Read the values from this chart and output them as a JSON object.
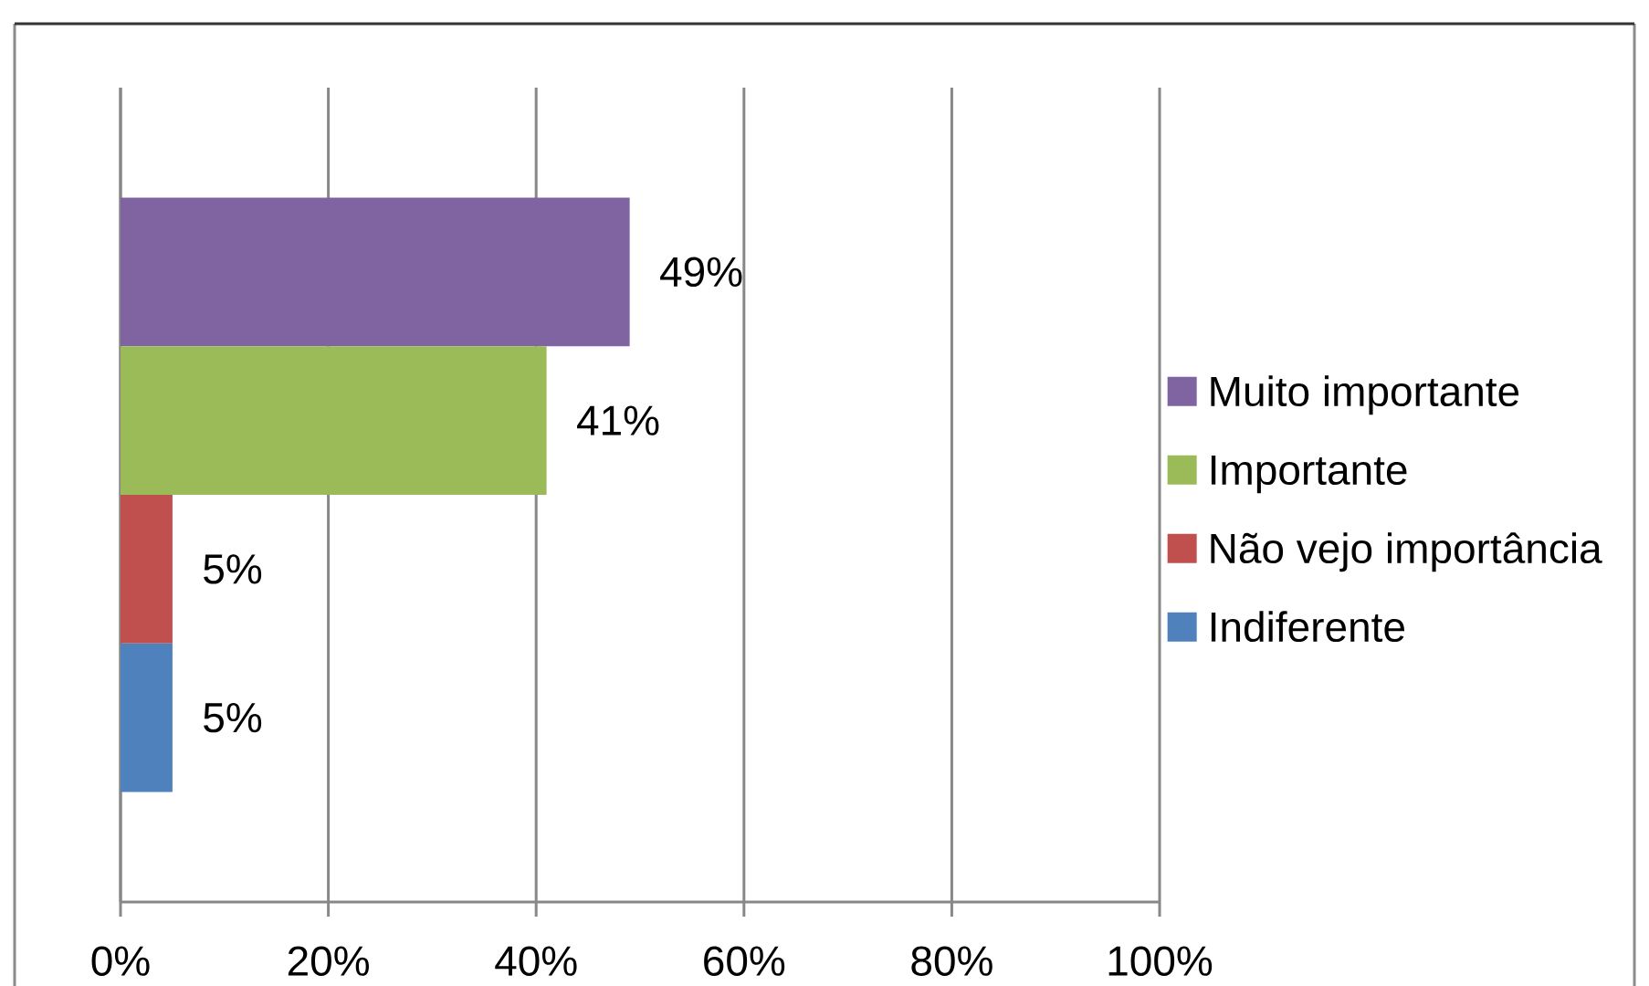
{
  "chart_data": {
    "type": "bar",
    "orientation": "horizontal",
    "categories": [
      null
    ],
    "series": [
      {
        "name": "Muito importante",
        "color": "#8064a2",
        "values": [
          49
        ],
        "value_labels": [
          "49%"
        ]
      },
      {
        "name": "Importante",
        "color": "#9bbb59",
        "values": [
          41
        ],
        "value_labels": [
          "41%"
        ]
      },
      {
        "name": "Não vejo importância",
        "color": "#c0504d",
        "values": [
          5
        ],
        "value_labels": [
          "5%"
        ]
      },
      {
        "name": "Indiferente",
        "color": "#4f81bd",
        "values": [
          5
        ],
        "value_labels": [
          "5%"
        ]
      }
    ],
    "xlim": [
      0,
      100
    ],
    "xticks": [
      {
        "value": 0,
        "label": "0%"
      },
      {
        "value": 20,
        "label": "20%"
      },
      {
        "value": 40,
        "label": "40%"
      },
      {
        "value": 60,
        "label": "60%"
      },
      {
        "value": 80,
        "label": "80%"
      },
      {
        "value": 100,
        "label": "100%"
      }
    ],
    "grid": "x",
    "legend": "right",
    "tick_labels": "x"
  }
}
